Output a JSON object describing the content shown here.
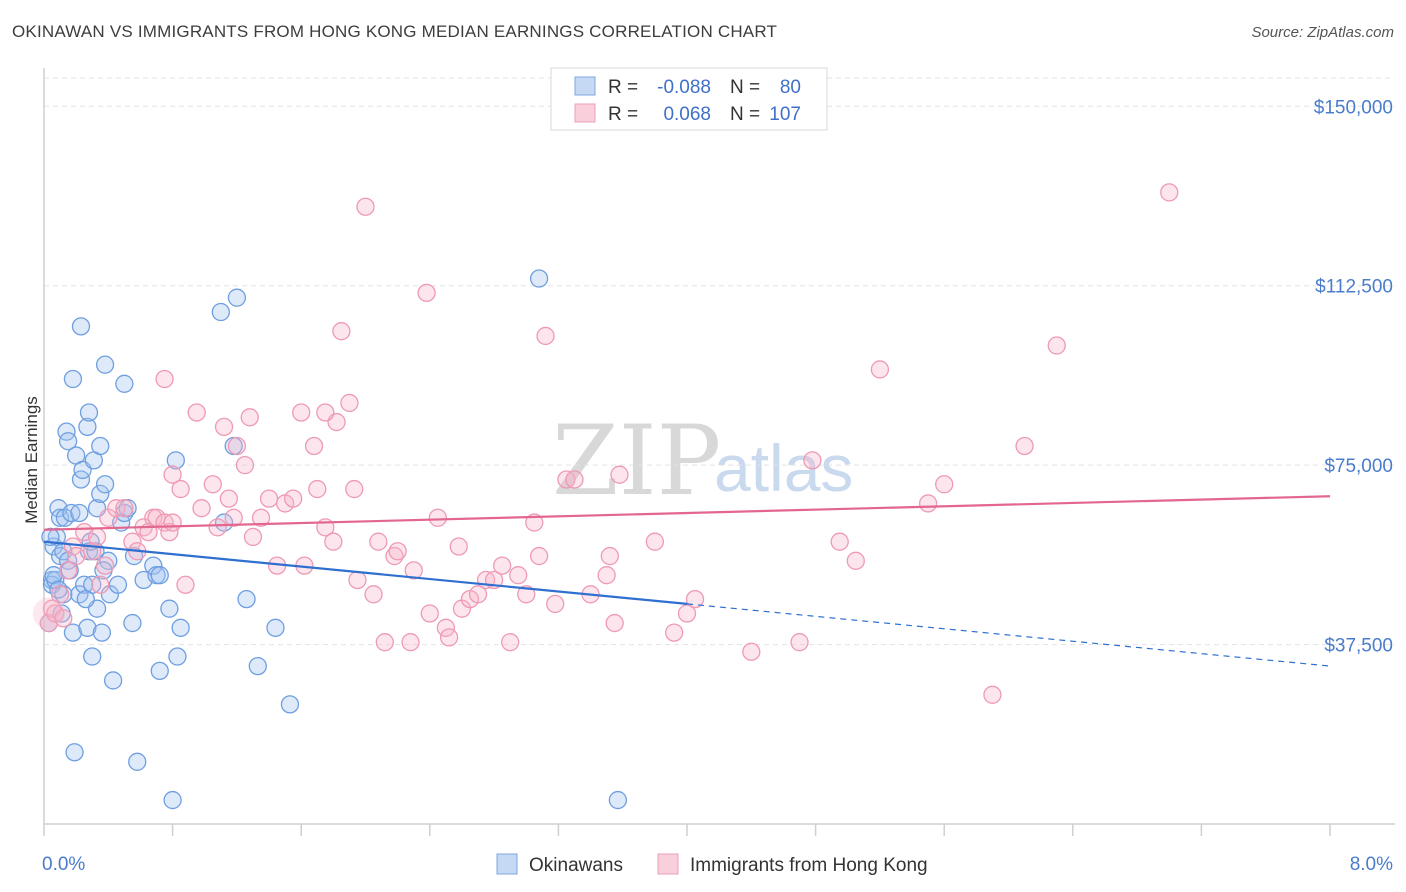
{
  "title": "OKINAWAN VS IMMIGRANTS FROM HONG KONG MEDIAN EARNINGS CORRELATION CHART",
  "source": "Source: ZipAtlas.com",
  "watermark": {
    "zip": "ZIP",
    "atlas": "atlas"
  },
  "colors": {
    "blue": "#6f9fe0",
    "blue_line": "#2f6fcf",
    "pink": "#ee9ab5",
    "pink_line": "#e3668f",
    "axis_text": "#4a7ccc"
  },
  "legend": {
    "r_label": "R =",
    "n_label": "N =",
    "rows": [
      {
        "r": "-0.088",
        "n": "80"
      },
      {
        "r": "0.068",
        "n": "107"
      }
    ]
  },
  "chart_data": {
    "type": "scatter",
    "title": "OKINAWAN VS IMMIGRANTS FROM HONG KONG MEDIAN EARNINGS CORRELATION CHART",
    "xlabel": "",
    "ylabel": "Median Earnings",
    "xlim": [
      0,
      8
    ],
    "ylim": [
      0,
      155000
    ],
    "x_tick_labels": [
      "0.0%",
      "8.0%"
    ],
    "y_ticks": [
      37500,
      75000,
      112500,
      150000
    ],
    "y_tick_labels": [
      "$37,500",
      "$75,000",
      "$112,500",
      "$150,000"
    ],
    "series": [
      {
        "name": "Okinawans",
        "color": "#6f9fe0",
        "trend": {
          "x0": 0,
          "y0": 59000,
          "x1": 4.0,
          "y1": 46000,
          "dashed_to_x": 8.0,
          "dashed_to_y": 33000
        },
        "points": [
          [
            0.05,
            51000
          ],
          [
            0.05,
            50000
          ],
          [
            0.06,
            58000
          ],
          [
            0.07,
            51000
          ],
          [
            0.08,
            60000
          ],
          [
            0.09,
            66000
          ],
          [
            0.1,
            64000
          ],
          [
            0.1,
            56000
          ],
          [
            0.12,
            57000
          ],
          [
            0.12,
            48000
          ],
          [
            0.13,
            64000
          ],
          [
            0.14,
            82000
          ],
          [
            0.15,
            80000
          ],
          [
            0.15,
            55000
          ],
          [
            0.16,
            53000
          ],
          [
            0.17,
            65000
          ],
          [
            0.18,
            93000
          ],
          [
            0.18,
            40000
          ],
          [
            0.2,
            77000
          ],
          [
            0.22,
            65000
          ],
          [
            0.22,
            48000
          ],
          [
            0.23,
            104000
          ],
          [
            0.23,
            72000
          ],
          [
            0.24,
            74000
          ],
          [
            0.25,
            50000
          ],
          [
            0.27,
            41000
          ],
          [
            0.27,
            83000
          ],
          [
            0.28,
            86000
          ],
          [
            0.28,
            57000
          ],
          [
            0.3,
            35000
          ],
          [
            0.3,
            50000
          ],
          [
            0.31,
            76000
          ],
          [
            0.32,
            57000
          ],
          [
            0.33,
            45000
          ],
          [
            0.33,
            66000
          ],
          [
            0.35,
            79000
          ],
          [
            0.35,
            69000
          ],
          [
            0.36,
            40000
          ],
          [
            0.38,
            96000
          ],
          [
            0.38,
            71000
          ],
          [
            0.4,
            55000
          ],
          [
            0.41,
            48000
          ],
          [
            0.43,
            30000
          ],
          [
            0.46,
            50000
          ],
          [
            0.48,
            63000
          ],
          [
            0.5,
            92000
          ],
          [
            0.5,
            65000
          ],
          [
            0.52,
            66000
          ],
          [
            0.55,
            42000
          ],
          [
            0.56,
            56000
          ],
          [
            0.58,
            13000
          ],
          [
            0.62,
            51000
          ],
          [
            0.68,
            54000
          ],
          [
            0.7,
            52000
          ],
          [
            0.72,
            32000
          ],
          [
            0.72,
            52000
          ],
          [
            0.78,
            45000
          ],
          [
            0.8,
            5000
          ],
          [
            0.82,
            76000
          ],
          [
            0.83,
            35000
          ],
          [
            0.85,
            41000
          ],
          [
            1.1,
            107000
          ],
          [
            1.12,
            63000
          ],
          [
            1.18,
            79000
          ],
          [
            1.2,
            110000
          ],
          [
            1.26,
            47000
          ],
          [
            1.33,
            33000
          ],
          [
            1.44,
            41000
          ],
          [
            1.53,
            25000
          ],
          [
            3.08,
            114000
          ],
          [
            3.57,
            5000
          ],
          [
            0.03,
            42000
          ],
          [
            0.04,
            60000
          ],
          [
            0.06,
            52000
          ],
          [
            0.09,
            49000
          ],
          [
            0.11,
            44000
          ],
          [
            0.19,
            15000
          ],
          [
            0.26,
            47000
          ],
          [
            0.29,
            59000
          ],
          [
            0.37,
            53000
          ]
        ]
      },
      {
        "name": "Immigrants from Hong Kong",
        "color": "#ee9ab5",
        "trend": {
          "x0": 0,
          "y0": 61500,
          "x1": 8.0,
          "y1": 68500
        },
        "points": [
          [
            0.03,
            42000
          ],
          [
            0.05,
            45000
          ],
          [
            0.07,
            44000
          ],
          [
            0.1,
            48000
          ],
          [
            0.12,
            43000
          ],
          [
            0.15,
            53000
          ],
          [
            0.18,
            58000
          ],
          [
            0.2,
            56000
          ],
          [
            0.25,
            61000
          ],
          [
            0.3,
            57000
          ],
          [
            0.33,
            60000
          ],
          [
            0.35,
            50000
          ],
          [
            0.38,
            54000
          ],
          [
            0.4,
            64000
          ],
          [
            0.45,
            66000
          ],
          [
            0.5,
            66000
          ],
          [
            0.55,
            59000
          ],
          [
            0.58,
            57000
          ],
          [
            0.62,
            62000
          ],
          [
            0.65,
            61000
          ],
          [
            0.68,
            64000
          ],
          [
            0.7,
            64000
          ],
          [
            0.75,
            63000
          ],
          [
            0.78,
            61000
          ],
          [
            0.8,
            63000
          ],
          [
            0.85,
            70000
          ],
          [
            0.88,
            50000
          ],
          [
            0.75,
            93000
          ],
          [
            0.8,
            73000
          ],
          [
            0.95,
            86000
          ],
          [
            0.98,
            66000
          ],
          [
            1.05,
            71000
          ],
          [
            1.08,
            62000
          ],
          [
            1.12,
            83000
          ],
          [
            1.15,
            68000
          ],
          [
            1.18,
            64000
          ],
          [
            1.2,
            79000
          ],
          [
            1.25,
            75000
          ],
          [
            1.28,
            85000
          ],
          [
            1.3,
            60000
          ],
          [
            1.35,
            64000
          ],
          [
            1.4,
            68000
          ],
          [
            1.45,
            54000
          ],
          [
            1.5,
            67000
          ],
          [
            1.55,
            68000
          ],
          [
            1.6,
            86000
          ],
          [
            1.62,
            54000
          ],
          [
            1.68,
            79000
          ],
          [
            1.7,
            70000
          ],
          [
            1.75,
            62000
          ],
          [
            1.8,
            59000
          ],
          [
            1.82,
            84000
          ],
          [
            1.85,
            103000
          ],
          [
            1.9,
            88000
          ],
          [
            1.93,
            70000
          ],
          [
            1.95,
            51000
          ],
          [
            2.05,
            48000
          ],
          [
            2.08,
            59000
          ],
          [
            2.12,
            38000
          ],
          [
            2.18,
            56000
          ],
          [
            2.2,
            57000
          ],
          [
            2.28,
            38000
          ],
          [
            2.3,
            53000
          ],
          [
            2.38,
            111000
          ],
          [
            2.4,
            44000
          ],
          [
            2.45,
            64000
          ],
          [
            2.5,
            41000
          ],
          [
            2.52,
            39000
          ],
          [
            2.58,
            58000
          ],
          [
            2.6,
            45000
          ],
          [
            2.65,
            47000
          ],
          [
            2.7,
            48000
          ],
          [
            2.75,
            51000
          ],
          [
            2.8,
            51000
          ],
          [
            2.85,
            54000
          ],
          [
            2.9,
            38000
          ],
          [
            2.95,
            52000
          ],
          [
            3.0,
            48000
          ],
          [
            3.05,
            63000
          ],
          [
            3.08,
            56000
          ],
          [
            3.12,
            102000
          ],
          [
            3.18,
            46000
          ],
          [
            3.25,
            72000
          ],
          [
            3.3,
            72000
          ],
          [
            3.4,
            48000
          ],
          [
            3.5,
            52000
          ],
          [
            3.52,
            56000
          ],
          [
            3.55,
            42000
          ],
          [
            3.58,
            73000
          ],
          [
            3.8,
            59000
          ],
          [
            3.92,
            40000
          ],
          [
            4.0,
            44000
          ],
          [
            4.05,
            47000
          ],
          [
            4.4,
            36000
          ],
          [
            4.7,
            38000
          ],
          [
            4.78,
            76000
          ],
          [
            4.95,
            59000
          ],
          [
            5.05,
            55000
          ],
          [
            5.2,
            95000
          ],
          [
            5.5,
            67000
          ],
          [
            5.6,
            71000
          ],
          [
            5.9,
            27000
          ],
          [
            6.1,
            79000
          ],
          [
            6.3,
            100000
          ],
          [
            7.0,
            132000
          ],
          [
            2.0,
            129000
          ],
          [
            1.75,
            86000
          ]
        ]
      }
    ]
  },
  "bottom_legend": [
    {
      "label": "Okinawans"
    },
    {
      "label": "Immigrants from Hong Kong"
    }
  ]
}
